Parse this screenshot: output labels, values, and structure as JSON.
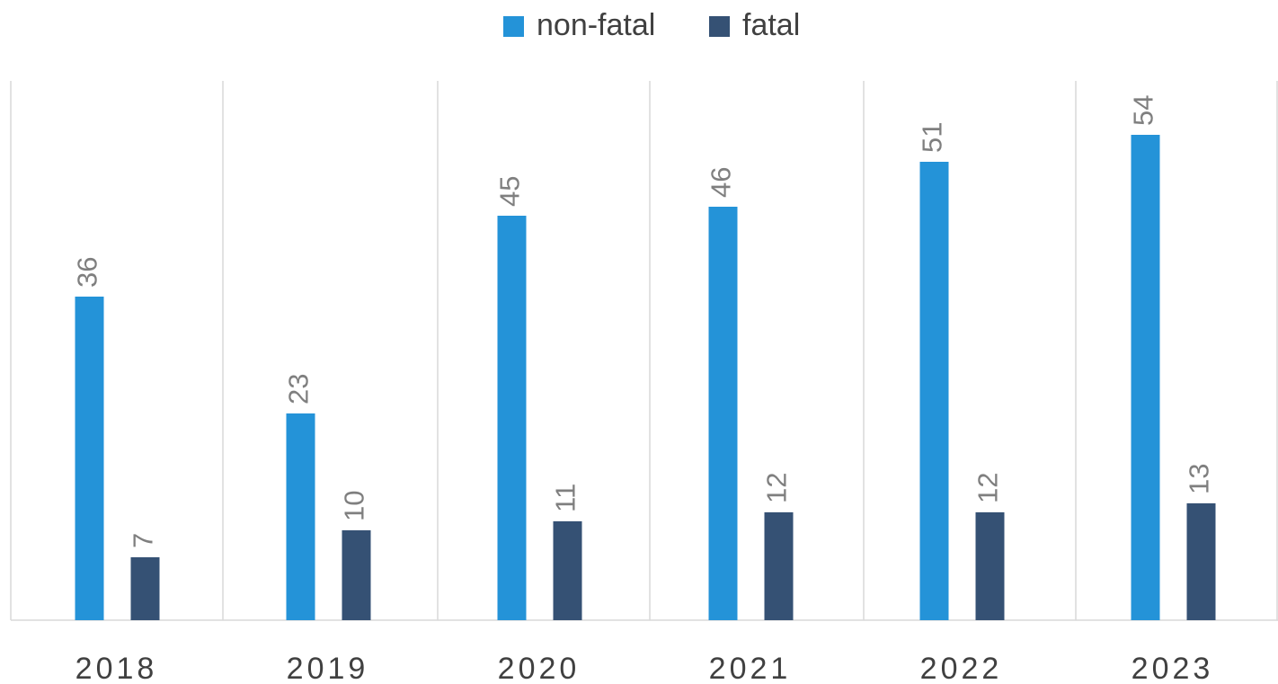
{
  "chart_data": {
    "type": "bar",
    "categories": [
      "2018",
      "2019",
      "2020",
      "2021",
      "2022",
      "2023"
    ],
    "series": [
      {
        "name": "non-fatal",
        "color": "#2493d8",
        "values": [
          36,
          23,
          45,
          46,
          51,
          54
        ]
      },
      {
        "name": "fatal",
        "color": "#355174",
        "values": [
          7,
          10,
          11,
          12,
          12,
          13
        ]
      }
    ],
    "ylim": [
      0,
      60
    ],
    "legend": "top"
  }
}
